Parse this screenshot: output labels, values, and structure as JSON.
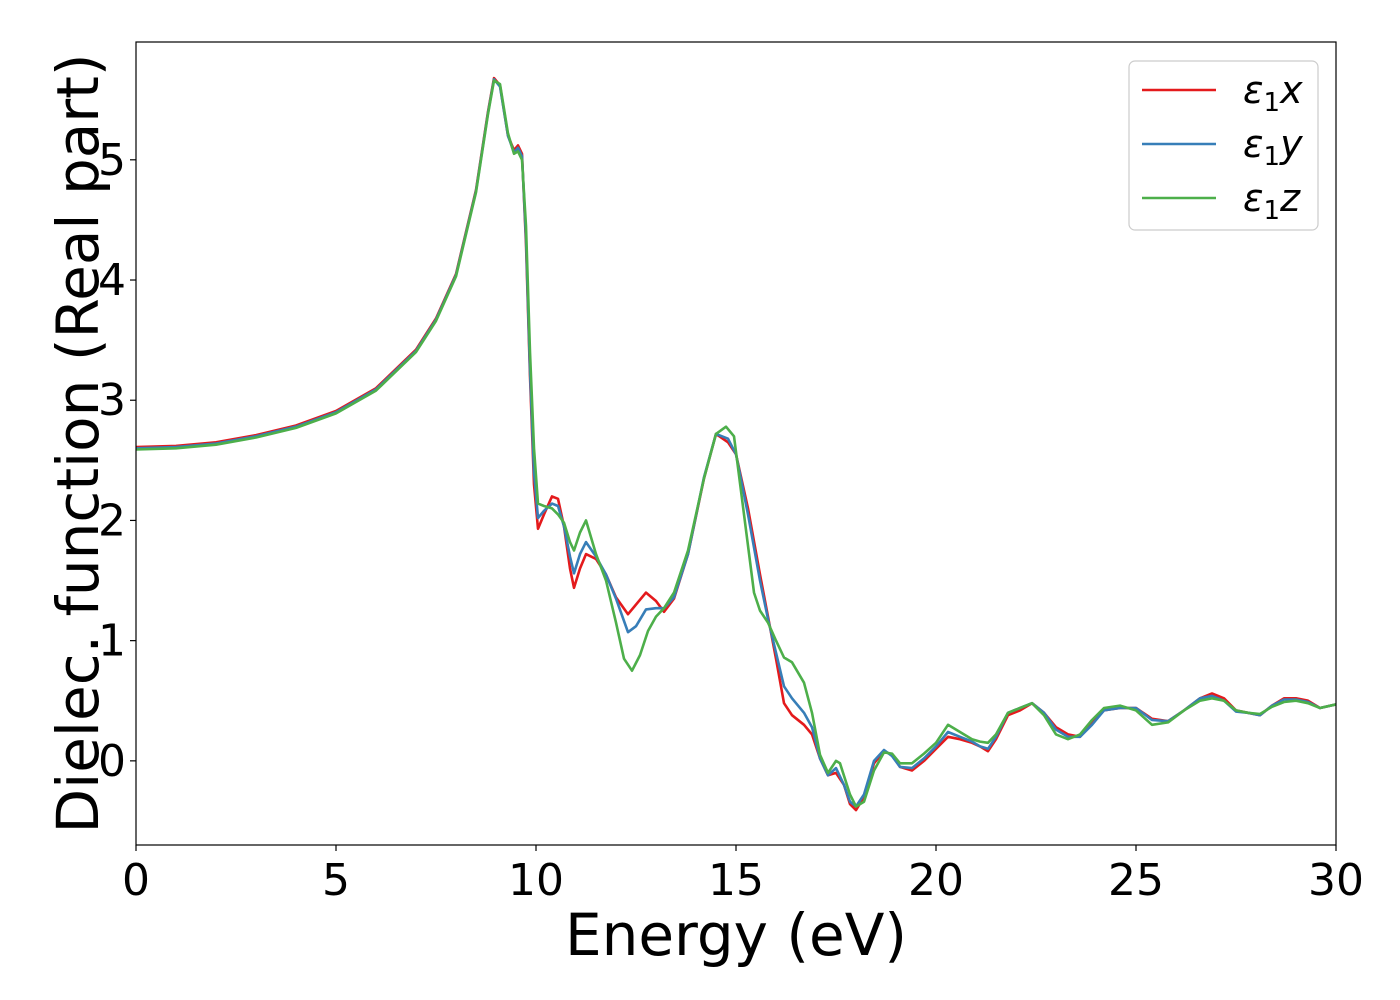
{
  "chart_data": {
    "type": "line",
    "title": "",
    "xlabel": "Energy (eV)",
    "ylabel": "Dielec. function (Real part)",
    "xlim": [
      0,
      30
    ],
    "ylim": [
      -0.7,
      5.98
    ],
    "x_ticks": [
      0,
      5,
      10,
      15,
      20,
      25,
      30
    ],
    "y_ticks": [
      0,
      1,
      2,
      3,
      4,
      5
    ],
    "grid": false,
    "legend_position": "top-right",
    "series": [
      {
        "name": "ε1x",
        "legend_parts": [
          "ε",
          "1",
          "x"
        ],
        "color": "#e41a1c",
        "points": [
          [
            0,
            2.61
          ],
          [
            1,
            2.62
          ],
          [
            2,
            2.65
          ],
          [
            3,
            2.71
          ],
          [
            4,
            2.79
          ],
          [
            5,
            2.91
          ],
          [
            6,
            3.1
          ],
          [
            7,
            3.42
          ],
          [
            7.5,
            3.68
          ],
          [
            8,
            4.05
          ],
          [
            8.5,
            4.75
          ],
          [
            8.8,
            5.4
          ],
          [
            8.95,
            5.68
          ],
          [
            9.1,
            5.62
          ],
          [
            9.3,
            5.2
          ],
          [
            9.45,
            5.08
          ],
          [
            9.55,
            5.12
          ],
          [
            9.65,
            5.05
          ],
          [
            9.75,
            4.3
          ],
          [
            9.85,
            3.2
          ],
          [
            9.95,
            2.3
          ],
          [
            10.05,
            1.93
          ],
          [
            10.2,
            2.05
          ],
          [
            10.4,
            2.2
          ],
          [
            10.55,
            2.18
          ],
          [
            10.7,
            1.95
          ],
          [
            10.85,
            1.6
          ],
          [
            10.95,
            1.44
          ],
          [
            11.1,
            1.6
          ],
          [
            11.25,
            1.72
          ],
          [
            11.5,
            1.68
          ],
          [
            11.75,
            1.55
          ],
          [
            12.0,
            1.36
          ],
          [
            12.3,
            1.22
          ],
          [
            12.5,
            1.3
          ],
          [
            12.75,
            1.4
          ],
          [
            13.0,
            1.33
          ],
          [
            13.2,
            1.24
          ],
          [
            13.45,
            1.35
          ],
          [
            13.8,
            1.72
          ],
          [
            14.2,
            2.35
          ],
          [
            14.5,
            2.72
          ],
          [
            14.8,
            2.65
          ],
          [
            15.0,
            2.55
          ],
          [
            15.3,
            2.1
          ],
          [
            15.6,
            1.55
          ],
          [
            15.8,
            1.2
          ],
          [
            16.0,
            0.85
          ],
          [
            16.2,
            0.48
          ],
          [
            16.4,
            0.38
          ],
          [
            16.7,
            0.3
          ],
          [
            16.9,
            0.22
          ],
          [
            17.1,
            0.02
          ],
          [
            17.3,
            -0.12
          ],
          [
            17.5,
            -0.1
          ],
          [
            17.7,
            -0.2
          ],
          [
            17.85,
            -0.36
          ],
          [
            18.0,
            -0.41
          ],
          [
            18.2,
            -0.3
          ],
          [
            18.45,
            -0.02
          ],
          [
            18.7,
            0.08
          ],
          [
            18.9,
            0.05
          ],
          [
            19.1,
            -0.05
          ],
          [
            19.4,
            -0.08
          ],
          [
            19.7,
            0.0
          ],
          [
            20.0,
            0.1
          ],
          [
            20.3,
            0.2
          ],
          [
            20.6,
            0.18
          ],
          [
            20.9,
            0.15
          ],
          [
            21.1,
            0.12
          ],
          [
            21.3,
            0.08
          ],
          [
            21.5,
            0.18
          ],
          [
            21.8,
            0.38
          ],
          [
            22.1,
            0.42
          ],
          [
            22.4,
            0.48
          ],
          [
            22.7,
            0.4
          ],
          [
            23.0,
            0.28
          ],
          [
            23.3,
            0.22
          ],
          [
            23.6,
            0.2
          ],
          [
            23.9,
            0.32
          ],
          [
            24.2,
            0.42
          ],
          [
            24.6,
            0.44
          ],
          [
            25.0,
            0.44
          ],
          [
            25.4,
            0.35
          ],
          [
            25.8,
            0.33
          ],
          [
            26.2,
            0.42
          ],
          [
            26.6,
            0.52
          ],
          [
            26.9,
            0.56
          ],
          [
            27.2,
            0.52
          ],
          [
            27.5,
            0.42
          ],
          [
            27.8,
            0.4
          ],
          [
            28.1,
            0.38
          ],
          [
            28.4,
            0.46
          ],
          [
            28.7,
            0.52
          ],
          [
            29.0,
            0.52
          ],
          [
            29.3,
            0.5
          ],
          [
            29.6,
            0.44
          ],
          [
            30,
            0.47
          ]
        ]
      },
      {
        "name": "ε1y",
        "legend_parts": [
          "ε",
          "1",
          "y"
        ],
        "color": "#377eb8",
        "points": [
          [
            0,
            2.6
          ],
          [
            1,
            2.61
          ],
          [
            2,
            2.64
          ],
          [
            3,
            2.7
          ],
          [
            4,
            2.78
          ],
          [
            5,
            2.9
          ],
          [
            6,
            3.09
          ],
          [
            7,
            3.41
          ],
          [
            7.5,
            3.67
          ],
          [
            8,
            4.04
          ],
          [
            8.5,
            4.74
          ],
          [
            8.8,
            5.39
          ],
          [
            8.95,
            5.67
          ],
          [
            9.1,
            5.61
          ],
          [
            9.3,
            5.2
          ],
          [
            9.45,
            5.06
          ],
          [
            9.55,
            5.1
          ],
          [
            9.65,
            5.03
          ],
          [
            9.75,
            4.35
          ],
          [
            9.85,
            3.25
          ],
          [
            9.95,
            2.4
          ],
          [
            10.05,
            2.02
          ],
          [
            10.2,
            2.08
          ],
          [
            10.4,
            2.14
          ],
          [
            10.55,
            2.12
          ],
          [
            10.7,
            1.95
          ],
          [
            10.85,
            1.7
          ],
          [
            10.95,
            1.56
          ],
          [
            11.1,
            1.72
          ],
          [
            11.25,
            1.82
          ],
          [
            11.5,
            1.7
          ],
          [
            11.75,
            1.55
          ],
          [
            12.0,
            1.35
          ],
          [
            12.3,
            1.07
          ],
          [
            12.5,
            1.12
          ],
          [
            12.75,
            1.26
          ],
          [
            13.0,
            1.27
          ],
          [
            13.2,
            1.27
          ],
          [
            13.45,
            1.36
          ],
          [
            13.8,
            1.72
          ],
          [
            14.2,
            2.36
          ],
          [
            14.5,
            2.72
          ],
          [
            14.8,
            2.68
          ],
          [
            15.0,
            2.55
          ],
          [
            15.3,
            2.05
          ],
          [
            15.6,
            1.5
          ],
          [
            15.8,
            1.18
          ],
          [
            16.0,
            0.9
          ],
          [
            16.2,
            0.62
          ],
          [
            16.4,
            0.52
          ],
          [
            16.7,
            0.4
          ],
          [
            16.9,
            0.28
          ],
          [
            17.1,
            0.02
          ],
          [
            17.3,
            -0.12
          ],
          [
            17.5,
            -0.06
          ],
          [
            17.7,
            -0.2
          ],
          [
            17.85,
            -0.34
          ],
          [
            18.0,
            -0.38
          ],
          [
            18.2,
            -0.28
          ],
          [
            18.45,
            0.0
          ],
          [
            18.7,
            0.09
          ],
          [
            18.9,
            0.04
          ],
          [
            19.1,
            -0.05
          ],
          [
            19.4,
            -0.06
          ],
          [
            19.7,
            0.02
          ],
          [
            20.0,
            0.12
          ],
          [
            20.3,
            0.24
          ],
          [
            20.6,
            0.2
          ],
          [
            20.9,
            0.16
          ],
          [
            21.1,
            0.12
          ],
          [
            21.3,
            0.1
          ],
          [
            21.5,
            0.2
          ],
          [
            21.8,
            0.4
          ],
          [
            22.1,
            0.44
          ],
          [
            22.4,
            0.48
          ],
          [
            22.7,
            0.4
          ],
          [
            23.0,
            0.26
          ],
          [
            23.3,
            0.2
          ],
          [
            23.6,
            0.2
          ],
          [
            23.9,
            0.3
          ],
          [
            24.2,
            0.42
          ],
          [
            24.6,
            0.44
          ],
          [
            25.0,
            0.44
          ],
          [
            25.4,
            0.34
          ],
          [
            25.8,
            0.33
          ],
          [
            26.2,
            0.42
          ],
          [
            26.6,
            0.52
          ],
          [
            26.9,
            0.54
          ],
          [
            27.2,
            0.5
          ],
          [
            27.5,
            0.41
          ],
          [
            27.8,
            0.4
          ],
          [
            28.1,
            0.38
          ],
          [
            28.4,
            0.46
          ],
          [
            28.7,
            0.51
          ],
          [
            29.0,
            0.51
          ],
          [
            29.3,
            0.49
          ],
          [
            29.6,
            0.44
          ],
          [
            30,
            0.47
          ]
        ]
      },
      {
        "name": "ε1z",
        "legend_parts": [
          "ε",
          "1",
          "z"
        ],
        "color": "#4daf4a",
        "points": [
          [
            0,
            2.59
          ],
          [
            1,
            2.6
          ],
          [
            2,
            2.63
          ],
          [
            3,
            2.69
          ],
          [
            4,
            2.77
          ],
          [
            5,
            2.89
          ],
          [
            6,
            3.08
          ],
          [
            7,
            3.4
          ],
          [
            7.5,
            3.66
          ],
          [
            8,
            4.03
          ],
          [
            8.5,
            4.73
          ],
          [
            8.8,
            5.38
          ],
          [
            8.95,
            5.66
          ],
          [
            9.1,
            5.63
          ],
          [
            9.3,
            5.22
          ],
          [
            9.45,
            5.05
          ],
          [
            9.55,
            5.07
          ],
          [
            9.65,
            5.0
          ],
          [
            9.75,
            4.45
          ],
          [
            9.85,
            3.4
          ],
          [
            9.95,
            2.6
          ],
          [
            10.05,
            2.14
          ],
          [
            10.2,
            2.12
          ],
          [
            10.4,
            2.1
          ],
          [
            10.55,
            2.05
          ],
          [
            10.7,
            1.98
          ],
          [
            10.85,
            1.82
          ],
          [
            10.95,
            1.75
          ],
          [
            11.1,
            1.9
          ],
          [
            11.25,
            2.0
          ],
          [
            11.5,
            1.72
          ],
          [
            11.75,
            1.5
          ],
          [
            12.0,
            1.15
          ],
          [
            12.2,
            0.85
          ],
          [
            12.4,
            0.75
          ],
          [
            12.6,
            0.88
          ],
          [
            12.8,
            1.08
          ],
          [
            13.0,
            1.2
          ],
          [
            13.2,
            1.27
          ],
          [
            13.45,
            1.4
          ],
          [
            13.8,
            1.75
          ],
          [
            14.2,
            2.35
          ],
          [
            14.5,
            2.72
          ],
          [
            14.75,
            2.78
          ],
          [
            14.95,
            2.7
          ],
          [
            15.2,
            2.05
          ],
          [
            15.45,
            1.4
          ],
          [
            15.6,
            1.25
          ],
          [
            15.8,
            1.15
          ],
          [
            16.0,
            1.0
          ],
          [
            16.2,
            0.86
          ],
          [
            16.4,
            0.82
          ],
          [
            16.7,
            0.65
          ],
          [
            16.9,
            0.4
          ],
          [
            17.1,
            0.05
          ],
          [
            17.3,
            -0.1
          ],
          [
            17.5,
            0.0
          ],
          [
            17.6,
            -0.02
          ],
          [
            17.85,
            -0.28
          ],
          [
            18.0,
            -0.38
          ],
          [
            18.2,
            -0.34
          ],
          [
            18.45,
            -0.08
          ],
          [
            18.7,
            0.07
          ],
          [
            18.9,
            0.06
          ],
          [
            19.1,
            -0.02
          ],
          [
            19.4,
            -0.02
          ],
          [
            19.7,
            0.06
          ],
          [
            20.0,
            0.15
          ],
          [
            20.3,
            0.3
          ],
          [
            20.6,
            0.24
          ],
          [
            20.9,
            0.18
          ],
          [
            21.1,
            0.16
          ],
          [
            21.3,
            0.15
          ],
          [
            21.5,
            0.22
          ],
          [
            21.8,
            0.4
          ],
          [
            22.1,
            0.44
          ],
          [
            22.4,
            0.48
          ],
          [
            22.7,
            0.38
          ],
          [
            23.0,
            0.22
          ],
          [
            23.3,
            0.18
          ],
          [
            23.6,
            0.22
          ],
          [
            23.9,
            0.34
          ],
          [
            24.2,
            0.44
          ],
          [
            24.6,
            0.46
          ],
          [
            25.0,
            0.42
          ],
          [
            25.4,
            0.3
          ],
          [
            25.8,
            0.32
          ],
          [
            26.2,
            0.42
          ],
          [
            26.6,
            0.5
          ],
          [
            26.9,
            0.52
          ],
          [
            27.2,
            0.5
          ],
          [
            27.5,
            0.42
          ],
          [
            27.8,
            0.4
          ],
          [
            28.1,
            0.39
          ],
          [
            28.4,
            0.45
          ],
          [
            28.7,
            0.49
          ],
          [
            29.0,
            0.5
          ],
          [
            29.3,
            0.48
          ],
          [
            29.6,
            0.44
          ],
          [
            30,
            0.47
          ]
        ]
      }
    ]
  }
}
